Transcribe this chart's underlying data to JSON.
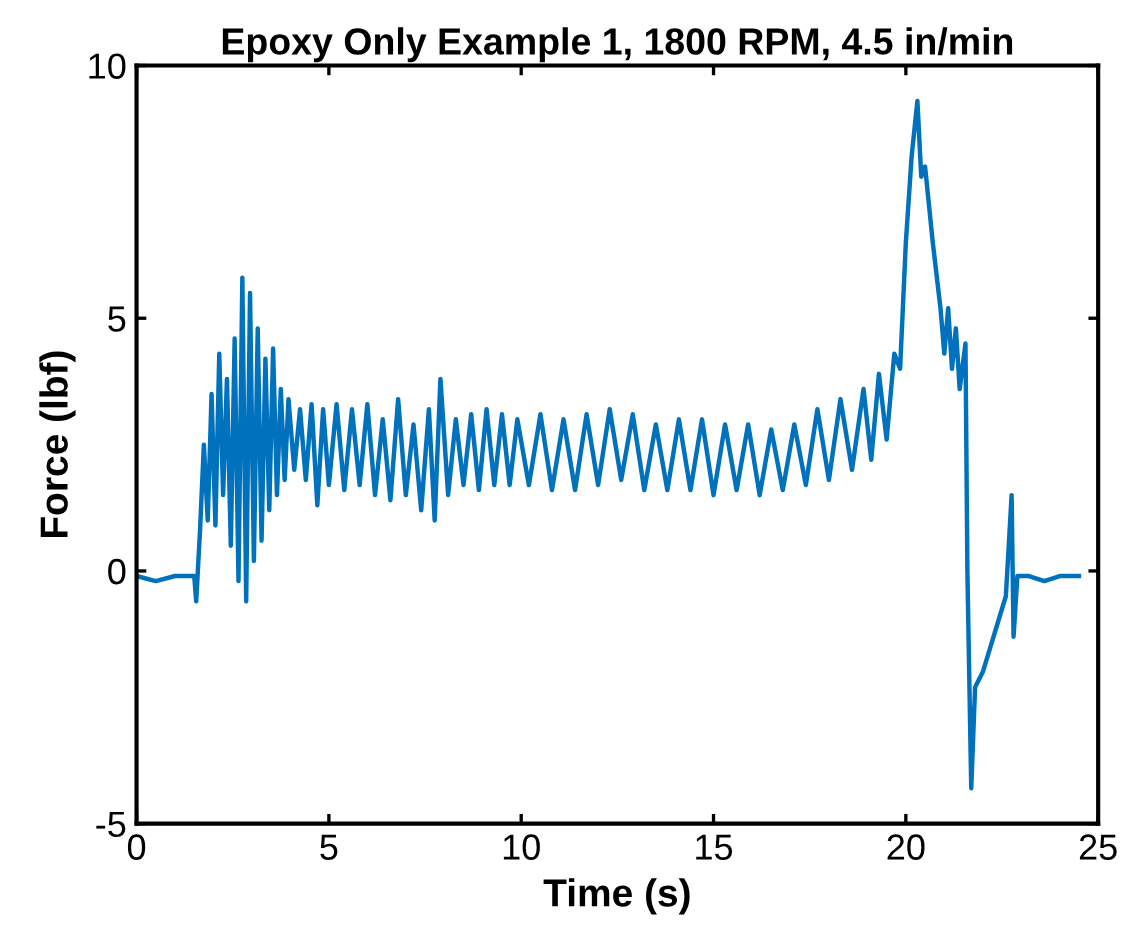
{
  "chart_data": {
    "type": "line",
    "title": "Epoxy Only Example 1, 1800 RPM, 4.5 in/min",
    "xlabel": "Time (s)",
    "ylabel": "Force (lbf)",
    "xlim": [
      0,
      25
    ],
    "xticks": [
      0,
      5,
      10,
      15,
      20,
      25
    ],
    "ylim": [
      -5,
      10
    ],
    "yticks": [
      -5,
      0,
      5,
      10
    ],
    "marker": "none",
    "line_style": "solid",
    "series": [
      {
        "color": "#0072bd",
        "x": [
          0,
          0.5,
          1.0,
          1.5,
          1.55,
          1.65,
          1.75,
          1.85,
          1.95,
          2.05,
          2.15,
          2.25,
          2.35,
          2.45,
          2.55,
          2.65,
          2.75,
          2.85,
          2.95,
          3.05,
          3.15,
          3.25,
          3.35,
          3.45,
          3.55,
          3.65,
          3.75,
          3.85,
          3.95,
          4.1,
          4.25,
          4.4,
          4.55,
          4.7,
          4.85,
          5.0,
          5.2,
          5.4,
          5.6,
          5.8,
          6.0,
          6.2,
          6.4,
          6.6,
          6.8,
          7.0,
          7.2,
          7.4,
          7.6,
          7.75,
          7.9,
          8.1,
          8.3,
          8.5,
          8.7,
          8.9,
          9.1,
          9.3,
          9.5,
          9.7,
          9.9,
          10.2,
          10.5,
          10.8,
          11.1,
          11.4,
          11.7,
          12.0,
          12.3,
          12.6,
          12.9,
          13.2,
          13.5,
          13.8,
          14.1,
          14.4,
          14.7,
          15.0,
          15.3,
          15.6,
          15.9,
          16.2,
          16.5,
          16.8,
          17.1,
          17.4,
          17.7,
          18.0,
          18.3,
          18.6,
          18.9,
          19.1,
          19.3,
          19.5,
          19.7,
          19.85,
          20.0,
          20.15,
          20.3,
          20.4,
          20.5,
          20.7,
          20.9,
          21.0,
          21.1,
          21.2,
          21.3,
          21.4,
          21.55,
          21.6,
          21.7,
          21.8,
          22.0,
          22.2,
          22.4,
          22.6,
          22.75,
          22.8,
          22.9,
          23.2,
          23.6,
          24.0,
          24.5
        ],
        "values": [
          -0.1,
          -0.2,
          -0.1,
          -0.1,
          -0.6,
          0.8,
          2.5,
          1.0,
          3.5,
          0.9,
          4.3,
          1.5,
          3.8,
          0.5,
          4.6,
          -0.2,
          5.8,
          -0.6,
          5.5,
          0.2,
          4.8,
          0.6,
          4.2,
          1.2,
          4.4,
          1.5,
          3.6,
          1.8,
          3.4,
          2.0,
          3.2,
          1.8,
          3.3,
          1.3,
          3.2,
          1.7,
          3.3,
          1.6,
          3.2,
          1.7,
          3.3,
          1.5,
          3.0,
          1.4,
          3.4,
          1.5,
          2.9,
          1.2,
          3.2,
          1.0,
          3.8,
          1.5,
          3.0,
          1.7,
          3.1,
          1.6,
          3.2,
          1.7,
          3.1,
          1.7,
          3.0,
          1.7,
          3.1,
          1.6,
          3.0,
          1.6,
          3.1,
          1.7,
          3.2,
          1.8,
          3.1,
          1.6,
          2.9,
          1.6,
          3.0,
          1.6,
          3.0,
          1.5,
          2.9,
          1.6,
          2.9,
          1.5,
          2.8,
          1.6,
          2.9,
          1.7,
          3.2,
          1.8,
          3.4,
          2.0,
          3.6,
          2.2,
          3.9,
          2.6,
          4.3,
          4.0,
          6.5,
          8.2,
          9.3,
          7.8,
          8.0,
          6.5,
          5.2,
          4.3,
          5.2,
          4.0,
          4.8,
          3.6,
          4.5,
          0,
          -4.3,
          -2.3,
          -2.0,
          -1.5,
          -1.0,
          -0.5,
          1.5,
          -1.3,
          -0.1,
          -0.1,
          -0.2,
          -0.1,
          -0.1
        ]
      }
    ]
  }
}
